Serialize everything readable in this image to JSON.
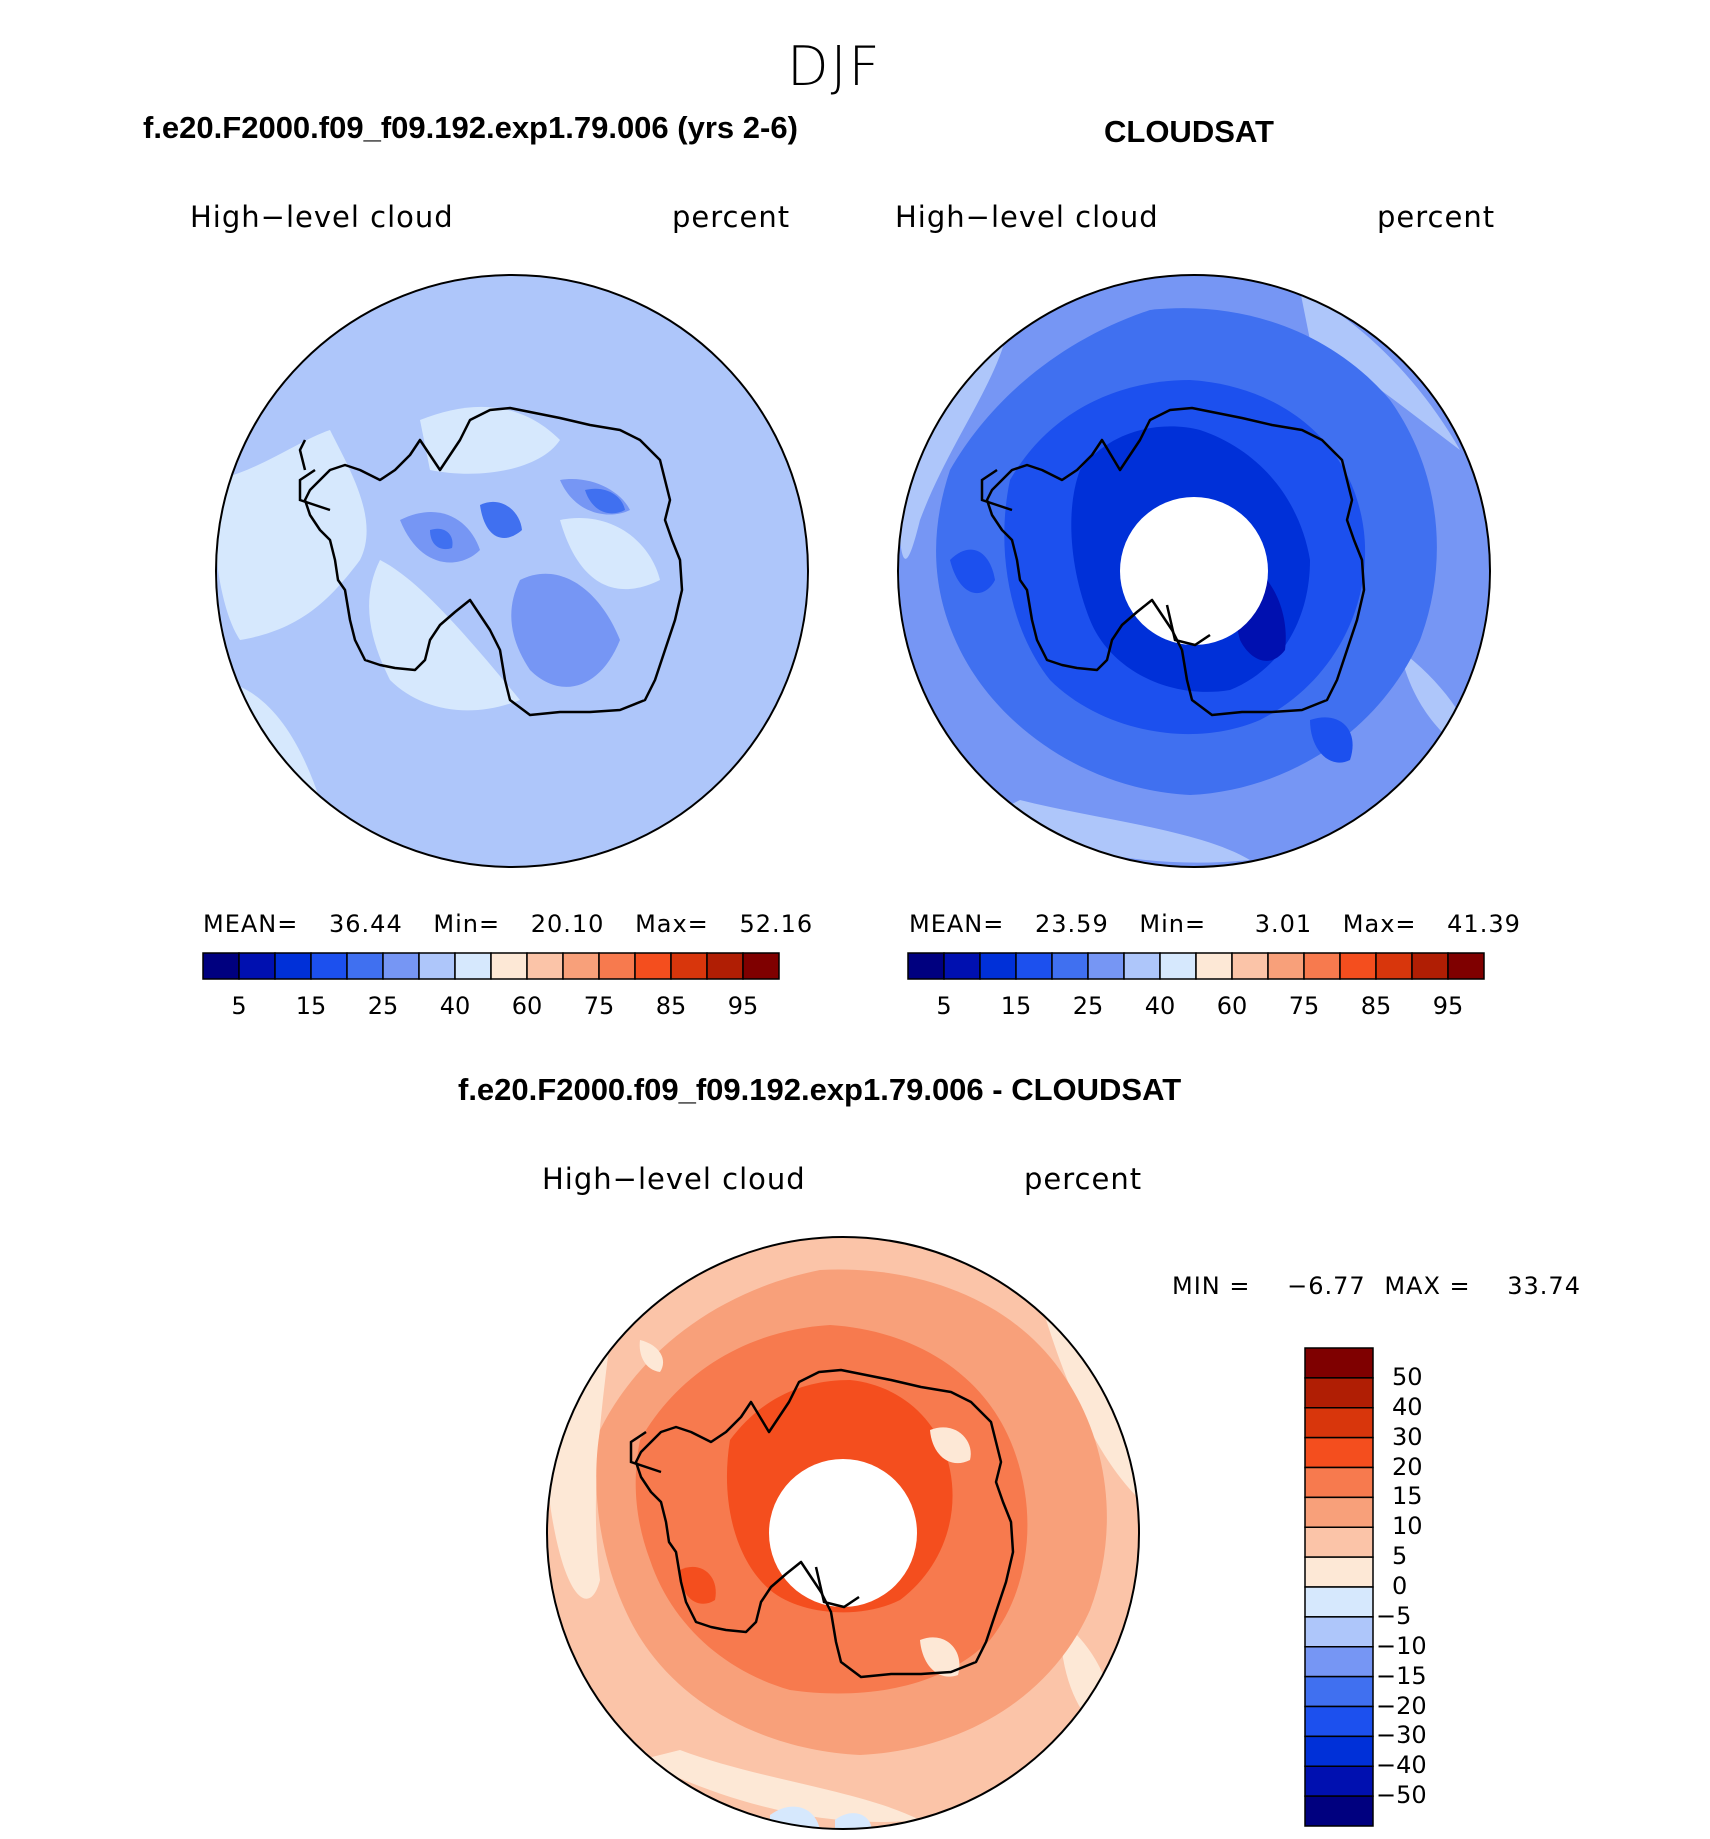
{
  "header": {
    "season": "DJF"
  },
  "panels": {
    "model": {
      "title": "f.e20.F2000.f09_f09.192.exp1.79.006 (yrs 2-6)",
      "variable": "High−level cloud",
      "units": "percent",
      "stats": {
        "mean_label": "MEAN=",
        "mean": "36.44",
        "min_label": "Min=",
        "min": "20.10",
        "max_label": "Max=",
        "max": "52.16"
      }
    },
    "obs": {
      "title": "CLOUDSAT",
      "variable": "High−level cloud",
      "units": "percent",
      "stats": {
        "mean_label": "MEAN=",
        "mean": "23.59",
        "min_label": "Min=",
        "min": "3.01",
        "max_label": "Max=",
        "max": "41.39"
      }
    },
    "diff": {
      "title": "f.e20.F2000.f09_f09.192.exp1.79.006 - CLOUDSAT",
      "variable": "High−level cloud",
      "units": "percent",
      "stats": {
        "min_label": "MIN =",
        "min": "−6.77",
        "max_label": "MAX =",
        "max": "33.74"
      }
    }
  },
  "colorbar_abs": {
    "colors": [
      "#00007f",
      "#0010b0",
      "#0030d8",
      "#1c50ee",
      "#4070f0",
      "#7696f4",
      "#aec6fa",
      "#d6e8fd",
      "#fde8d6",
      "#fbc4a8",
      "#f8a07a",
      "#f77a4e",
      "#f44e1e",
      "#d8360c",
      "#b01e04",
      "#7f0000"
    ],
    "tick_labels": [
      "5",
      "15",
      "25",
      "40",
      "60",
      "75",
      "85",
      "95"
    ]
  },
  "colorbar_diff": {
    "colors": [
      "#7f0000",
      "#b01e04",
      "#d8360c",
      "#f44e1e",
      "#f77a4e",
      "#f8a07a",
      "#fbc4a8",
      "#fde8d6",
      "#d6e8fd",
      "#aec6fa",
      "#7696f4",
      "#4070f0",
      "#1c50ee",
      "#0030d8",
      "#0010b0",
      "#00007f"
    ],
    "tick_labels": [
      "50",
      "40",
      "30",
      "20",
      "15",
      "10",
      "5",
      "0",
      "−5",
      "−10",
      "−15",
      "−20",
      "−30",
      "−40",
      "−50"
    ]
  },
  "map_colors": {
    "model_base": "#aec6fa",
    "model_light": "#d6e8fd",
    "model_mid": "#7696f4",
    "model_dark": "#4070f0",
    "model_darker": "#1c50ee",
    "obs_base": "#7696f4",
    "obs_light": "#aec6fa",
    "obs_mid": "#4070f0",
    "obs_dark": "#1c50ee",
    "obs_darker": "#0030d8",
    "obs_darkest": "#0010b0",
    "diff_base": "#fbc4a8",
    "diff_light": "#fde8d6",
    "diff_mid": "#f8a07a",
    "diff_dark": "#f77a4e",
    "diff_darker": "#f44e1e",
    "diff_blue": "#d6e8fd"
  }
}
